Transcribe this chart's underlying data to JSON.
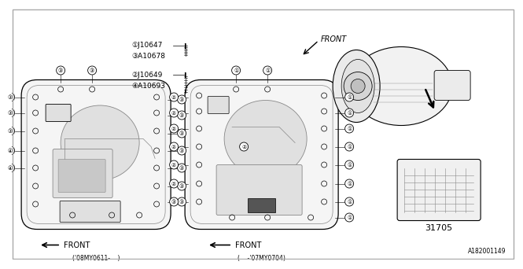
{
  "background_color": "#ffffff",
  "colors": {
    "line": "#000000",
    "fill_light": "#f5f5f5",
    "fill_medium": "#e0e0e0",
    "fill_dark": "#c8c8c8",
    "bg": "#ffffff",
    "gray_line": "#888888"
  },
  "labels": {
    "caption_left": "('08MY0611-    )",
    "caption_right": "(    -'07MY0704)",
    "diagram_code": "A182001149",
    "part_no": "31705",
    "front": "FRONT",
    "l1": "①J10647",
    "l2": "③A10678",
    "l3": "②J10649",
    "l4": "④A10693"
  },
  "callout_chars": {
    "one": "①",
    "two": "②",
    "three": "③",
    "four": "④"
  }
}
